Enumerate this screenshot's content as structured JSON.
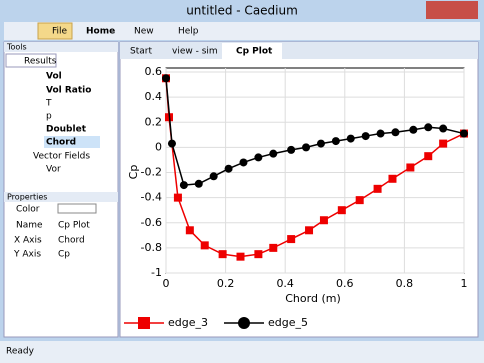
{
  "window": {
    "title": "untitled - Caedium"
  },
  "toolbar": [
    "File",
    "Home",
    "New",
    "Help"
  ],
  "tools": {
    "label": "Tools",
    "tab": "Results",
    "items": [
      "Vol",
      "Vol Ratio",
      "T",
      "p",
      "Doublet",
      "Chord",
      "Vector Fields",
      "Vor"
    ]
  },
  "properties": {
    "label": "Properties",
    "rows": [
      [
        "Color",
        ""
      ],
      [
        "Name",
        "Cp Plot"
      ],
      [
        "X Axis",
        "Chord"
      ],
      [
        "Y Axis",
        "Cp"
      ]
    ]
  },
  "tabs": [
    "Start",
    "view - sim",
    "Cp Plot"
  ],
  "status": "Ready",
  "chart_data": {
    "type": "line",
    "x_label": "Chord (m)",
    "y_label": "Cp",
    "xlim": [
      0,
      1
    ],
    "ylim": [
      -1,
      0.6
    ],
    "xticks": [
      0,
      0.2,
      0.4,
      0.6,
      0.8,
      1
    ],
    "yticks": [
      0.6,
      0.4,
      0.2,
      0,
      -0.2,
      -0.4,
      -0.6,
      -0.8,
      -1
    ],
    "series": [
      {
        "name": "edge_3",
        "color": "#ee0000",
        "marker": "square",
        "x": [
          0,
          0.01,
          0.04,
          0.08,
          0.13,
          0.19,
          0.25,
          0.31,
          0.36,
          0.42,
          0.48,
          0.53,
          0.59,
          0.65,
          0.71,
          0.76,
          0.82,
          0.88,
          0.93,
          1
        ],
        "values": [
          0.55,
          0.24,
          -0.4,
          -0.66,
          -0.78,
          -0.85,
          -0.87,
          -0.85,
          -0.8,
          -0.73,
          -0.66,
          -0.58,
          -0.5,
          -0.42,
          -0.33,
          -0.25,
          -0.16,
          -0.07,
          0.03,
          0.11
        ]
      },
      {
        "name": "edge_5",
        "color": "#000000",
        "marker": "circle",
        "x": [
          0,
          0.02,
          0.06,
          0.11,
          0.16,
          0.21,
          0.26,
          0.31,
          0.36,
          0.42,
          0.47,
          0.52,
          0.57,
          0.62,
          0.67,
          0.72,
          0.77,
          0.83,
          0.88,
          0.93,
          1
        ],
        "values": [
          0.55,
          0.03,
          -0.3,
          -0.29,
          -0.23,
          -0.17,
          -0.12,
          -0.08,
          -0.05,
          -0.02,
          0,
          0.03,
          0.05,
          0.07,
          0.09,
          0.11,
          0.12,
          0.14,
          0.16,
          0.15,
          0.11
        ]
      }
    ]
  }
}
